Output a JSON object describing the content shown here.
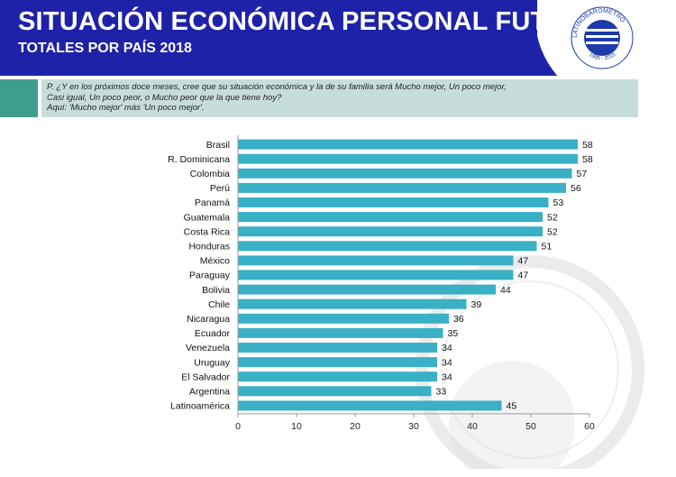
{
  "header": {
    "title": "SITUACIÓN ECONÓMICA PERSONAL FUTURA",
    "subtitle": "TOTALES POR PAÍS 2018"
  },
  "logo": {
    "text": "LATINOBARÓMETRO",
    "years": "1995 - 2015"
  },
  "question": {
    "line1": "P. ¿Y en los próximos doce meses, cree que su situación económica y la de su familia será Mucho mejor, Un poco mejor,",
    "line2": "Casi igual, Un poco peor, o Mucho peor que la que tiene hoy?",
    "line3": "Aquí: 'Mucho mejor' más 'Un poco mejor'."
  },
  "colors": {
    "header_bg": "#1e22a8",
    "bar": "#3ab0c6",
    "swatch": "#3d9d8e",
    "question_bg": "#c7ddd9"
  },
  "chart_data": {
    "type": "bar",
    "orientation": "horizontal",
    "categories": [
      "Brasil",
      "R. Dominicana",
      "Colombia",
      "Perú",
      "Panamá",
      "Guatemala",
      "Costa Rica",
      "Honduras",
      "México",
      "Paraguay",
      "Bolivia",
      "Chile",
      "Nicaragua",
      "Ecuador",
      "Venezuela",
      "Uruguay",
      "El Salvador",
      "Argentina",
      "Latinoamérica"
    ],
    "values": [
      58,
      58,
      57,
      56,
      53,
      52,
      52,
      51,
      47,
      47,
      44,
      39,
      36,
      35,
      34,
      34,
      34,
      33,
      45
    ],
    "title": "SITUACIÓN ECONÓMICA PERSONAL FUTURA",
    "subtitle": "TOTALES POR PAÍS 2018",
    "xlim": [
      0,
      60
    ],
    "xticks": [
      0,
      10,
      20,
      30,
      40,
      50,
      60
    ],
    "grid": false,
    "legend": "none"
  }
}
